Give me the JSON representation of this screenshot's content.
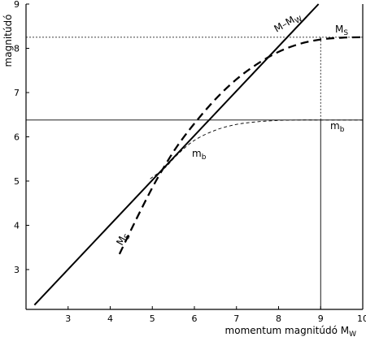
{
  "chart_data": {
    "type": "line",
    "title": "",
    "xlabel": "momentum magnitúdó M",
    "xlabel_sub": "W",
    "ylabel": "magnitúdó",
    "xlim": [
      2,
      10
    ],
    "ylim": [
      2.1,
      9
    ],
    "x_ticks": [
      3,
      4,
      5,
      6,
      7,
      8,
      9,
      10
    ],
    "y_ticks": [
      3,
      4,
      5,
      6,
      7,
      8,
      9
    ],
    "grid": false,
    "legend": "none",
    "series": [
      {
        "key": "m_eq_mw",
        "style": "solid-thick",
        "label": "M–M",
        "label_sub": "W",
        "points": [
          [
            2.2,
            2.2
          ],
          [
            8.95,
            9.0
          ]
        ]
      },
      {
        "key": "ms",
        "style": "dashed-thick",
        "label": "M",
        "label_sub": "S",
        "points": [
          [
            4.22,
            3.35
          ],
          [
            4.6,
            4.1
          ],
          [
            5.0,
            4.85
          ],
          [
            5.3,
            5.35
          ],
          [
            5.6,
            5.8
          ],
          [
            6.0,
            6.3
          ],
          [
            6.5,
            6.85
          ],
          [
            7.0,
            7.3
          ],
          [
            7.5,
            7.65
          ],
          [
            8.0,
            7.92
          ],
          [
            8.5,
            8.1
          ],
          [
            9.0,
            8.2
          ],
          [
            9.5,
            8.24
          ],
          [
            10.0,
            8.25
          ]
        ]
      },
      {
        "key": "mb",
        "style": "dashed-thin",
        "label": "m",
        "label_sub": "b",
        "points": [
          [
            4.95,
            5.05
          ],
          [
            5.3,
            5.3
          ],
          [
            5.6,
            5.6
          ],
          [
            6.0,
            5.92
          ],
          [
            6.5,
            6.15
          ],
          [
            7.0,
            6.28
          ],
          [
            7.5,
            6.34
          ],
          [
            8.0,
            6.37
          ],
          [
            8.5,
            6.38
          ],
          [
            9.0,
            6.38
          ],
          [
            10.0,
            6.38
          ]
        ]
      }
    ],
    "reference_lines": [
      {
        "orientation": "horizontal",
        "value": 8.25,
        "style": "dotted"
      },
      {
        "orientation": "horizontal",
        "value": 6.38,
        "style": "solid-thin"
      },
      {
        "orientation": "vertical",
        "value": 9.0,
        "from": 6.38,
        "to": 8.25,
        "style": "dotted"
      },
      {
        "orientation": "vertical",
        "value": 9.0,
        "from": 2.1,
        "to": 6.38,
        "style": "solid-thin"
      }
    ]
  }
}
